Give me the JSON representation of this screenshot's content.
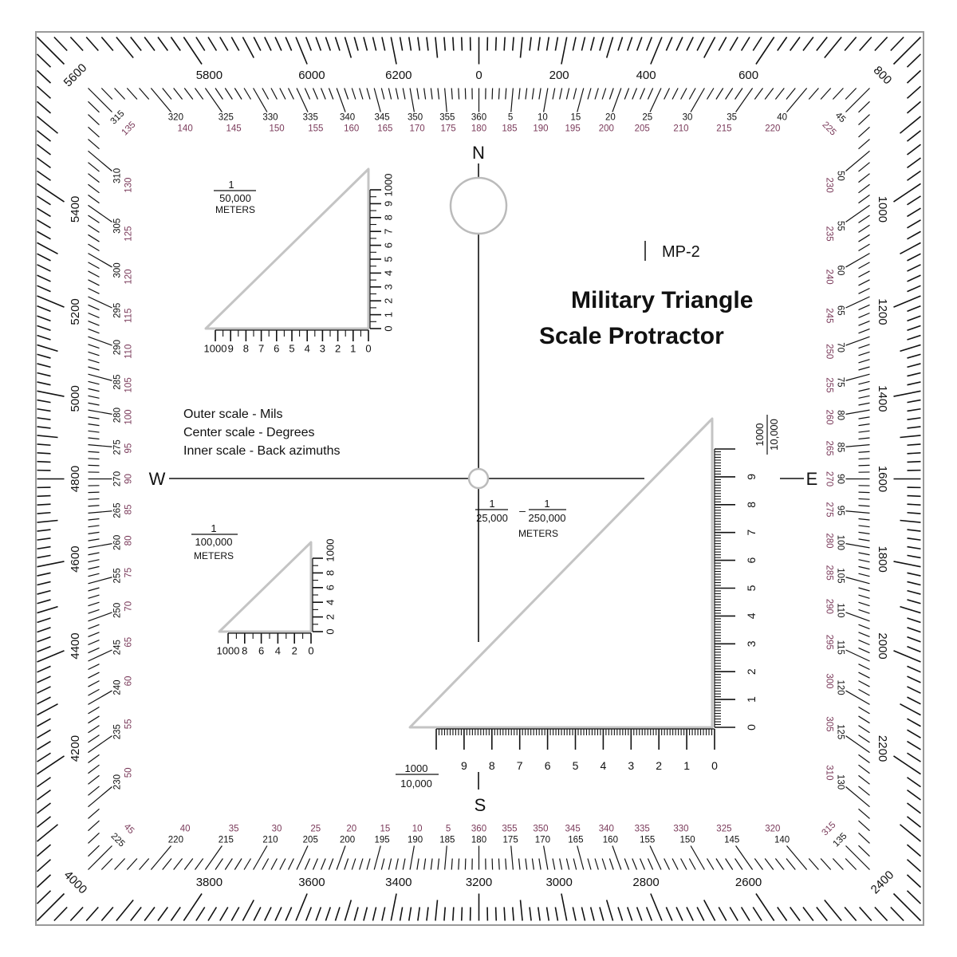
{
  "product": {
    "model": "MP-2",
    "title_line1": "Military Triangle",
    "title_line2": "Scale Protractor"
  },
  "legend": [
    "Outer  scale - Mils",
    "Center scale - Degrees",
    "Inner scale - Back azimuths"
  ],
  "compass": {
    "north": "N",
    "south": "S",
    "east": "E",
    "west": "W"
  },
  "colors": {
    "ink": "#111111",
    "back_azimuth": "#7a3a5a",
    "frame": "#9a9a9a"
  },
  "mils_labels": [
    "0",
    "200",
    "400",
    "600",
    "800",
    "1000",
    "1200",
    "1400",
    "1600",
    "1800",
    "2000",
    "2200",
    "2400",
    "2600",
    "2800",
    "3000",
    "3200",
    "3400",
    "3600",
    "3800",
    "4000",
    "4200",
    "4400",
    "4600",
    "4800",
    "5000",
    "5200",
    "5400",
    "5600",
    "5800",
    "6000",
    "6200"
  ],
  "degree_labels": [
    "360",
    "5",
    "10",
    "15",
    "20",
    "25",
    "30",
    "35",
    "40",
    "45",
    "50",
    "55",
    "60",
    "65",
    "70",
    "75",
    "80",
    "85",
    "90",
    "95",
    "100",
    "105",
    "110",
    "115",
    "120",
    "125",
    "130",
    "135",
    "140",
    "145",
    "150",
    "155",
    "160",
    "165",
    "170",
    "175",
    "180",
    "185",
    "190",
    "195",
    "200",
    "205",
    "210",
    "215",
    "220",
    "225",
    "230",
    "235",
    "240",
    "245",
    "250",
    "255",
    "260",
    "265",
    "270",
    "275",
    "280",
    "285",
    "290",
    "295",
    "300",
    "305",
    "310",
    "315",
    "320",
    "325",
    "330",
    "335",
    "340",
    "345",
    "350",
    "355"
  ],
  "back_azimuth_labels": [
    "180",
    "185",
    "190",
    "195",
    "200",
    "205",
    "210",
    "215",
    "220",
    "225",
    "230",
    "235",
    "240",
    "245",
    "250",
    "255",
    "260",
    "265",
    "270",
    "275",
    "280",
    "285",
    "290",
    "295",
    "300",
    "305",
    "310",
    "315",
    "320",
    "325",
    "330",
    "335",
    "340",
    "345",
    "350",
    "355",
    "360",
    "5",
    "10",
    "15",
    "20",
    "25",
    "30",
    "35",
    "40",
    "45",
    "50",
    "55",
    "60",
    "65",
    "70",
    "75",
    "80",
    "85",
    "90",
    "95",
    "100",
    "105",
    "110",
    "115",
    "120",
    "125",
    "130",
    "135",
    "140",
    "145",
    "150",
    "155",
    "160",
    "165",
    "170",
    "175"
  ],
  "scales": {
    "s50k": {
      "num": "1",
      "den": "50,000",
      "unit": "METERS",
      "vertical": [
        "0",
        "1",
        "2",
        "3",
        "4",
        "5",
        "6",
        "7",
        "8",
        "9",
        "1000"
      ],
      "horizontal": [
        "1000",
        "9",
        "8",
        "7",
        "6",
        "5",
        "4",
        "3",
        "2",
        "1",
        "0"
      ]
    },
    "s100k": {
      "num": "1",
      "den": "100,000",
      "unit": "METERS",
      "vertical": [
        "0",
        "2",
        "4",
        "6",
        "8",
        "1000"
      ],
      "horizontal": [
        "1000",
        "8",
        "6",
        "4",
        "2",
        "0"
      ]
    },
    "s25k": {
      "num1": "1",
      "den1": "25,000",
      "dash": "–",
      "num2": "1",
      "den2": "250,000",
      "unit": "METERS",
      "vertical": [
        "0",
        "1",
        "2",
        "3",
        "4",
        "5",
        "6",
        "7",
        "8",
        "9"
      ],
      "vertical_end_num": "1000",
      "vertical_end_den": "10,000",
      "horizontal": [
        "9",
        "8",
        "7",
        "6",
        "5",
        "4",
        "3",
        "2",
        "1",
        "0"
      ],
      "horizontal_end_num": "1000",
      "horizontal_end_den": "10,000"
    }
  }
}
